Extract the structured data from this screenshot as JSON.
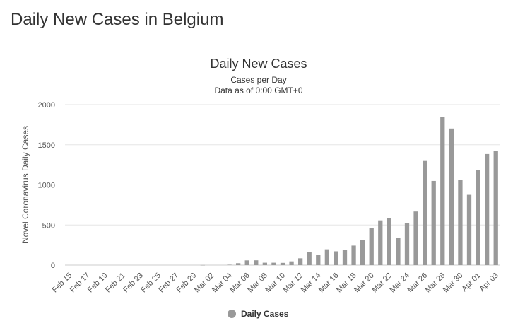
{
  "page": {
    "heading": "Daily New Cases in Belgium"
  },
  "chart_data": {
    "type": "bar",
    "title": "Daily New Cases",
    "subtitle_lines": [
      "Cases per Day",
      "Data as of 0:00 GMT+0"
    ],
    "ylabel": "Novel Coronavirus Daily Cases",
    "xlabel": "",
    "ylim": [
      0,
      2000
    ],
    "yticks": [
      0,
      500,
      1000,
      1500,
      2000
    ],
    "grid": true,
    "legend_position": "bottom-center",
    "bar_color": "#999999",
    "categories": [
      "Feb 15",
      "Feb 16",
      "Feb 17",
      "Feb 18",
      "Feb 19",
      "Feb 20",
      "Feb 21",
      "Feb 22",
      "Feb 23",
      "Feb 24",
      "Feb 25",
      "Feb 26",
      "Feb 27",
      "Feb 28",
      "Feb 29",
      "Mar 01",
      "Mar 02",
      "Mar 03",
      "Mar 04",
      "Mar 05",
      "Mar 06",
      "Mar 07",
      "Mar 08",
      "Mar 09",
      "Mar 10",
      "Mar 11",
      "Mar 12",
      "Mar 13",
      "Mar 14",
      "Mar 15",
      "Mar 16",
      "Mar 17",
      "Mar 18",
      "Mar 19",
      "Mar 20",
      "Mar 21",
      "Mar 22",
      "Mar 23",
      "Mar 24",
      "Mar 25",
      "Mar 26",
      "Mar 27",
      "Mar 28",
      "Mar 29",
      "Mar 30",
      "Mar 31",
      "Apr 01",
      "Apr 02",
      "Apr 03"
    ],
    "tick_labels": [
      "Feb 15",
      "Feb 17",
      "Feb 19",
      "Feb 21",
      "Feb 23",
      "Feb 25",
      "Feb 27",
      "Feb 29",
      "Mar 02",
      "Mar 04",
      "Mar 06",
      "Mar 08",
      "Mar 10",
      "Mar 12",
      "Mar 14",
      "Mar 16",
      "Mar 18",
      "Mar 20",
      "Mar 22",
      "Mar 24",
      "Mar 26",
      "Mar 28",
      "Mar 30",
      "Apr 01",
      "Apr 03"
    ],
    "series": [
      {
        "name": "Daily Cases",
        "values": [
          0,
          0,
          0,
          0,
          0,
          0,
          0,
          0,
          0,
          0,
          0,
          0,
          0,
          0,
          0,
          1,
          0,
          0,
          5,
          24,
          59,
          60,
          30,
          30,
          28,
          47,
          85,
          160,
          130,
          197,
          172,
          185,
          243,
          309,
          462,
          558,
          586,
          342,
          526,
          668,
          1298,
          1049,
          1850,
          1702,
          1063,
          876,
          1189,
          1384,
          1422
        ]
      }
    ]
  }
}
